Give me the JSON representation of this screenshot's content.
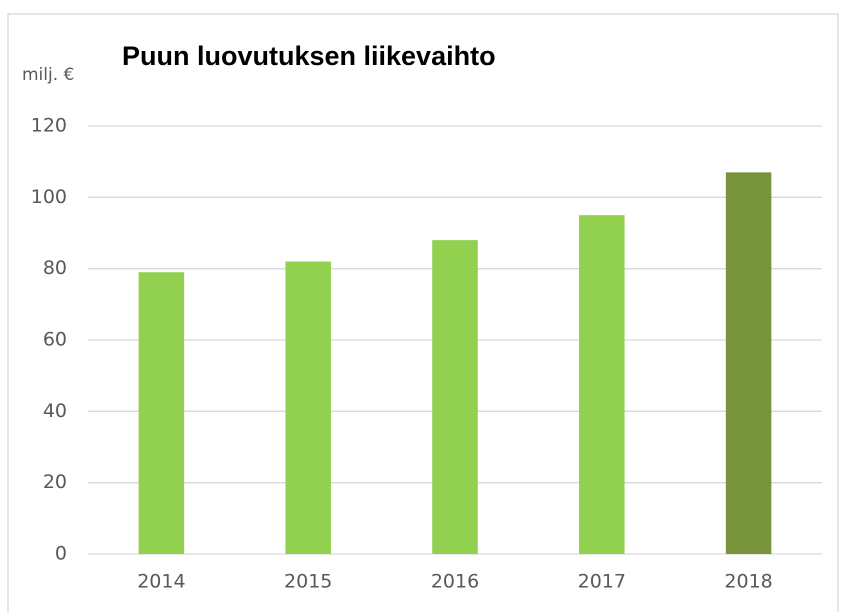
{
  "chart_data": {
    "type": "bar",
    "title": "Puun luovutuksen liikevaihto",
    "y_label": "milj. €",
    "categories": [
      "2014",
      "2015",
      "2016",
      "2017",
      "2018"
    ],
    "values": [
      79,
      82,
      88,
      95,
      107
    ],
    "colors": [
      "#92d050",
      "#92d050",
      "#92d050",
      "#92d050",
      "#77933c"
    ],
    "ylim": [
      0,
      120
    ],
    "yticks": [
      0,
      20,
      40,
      60,
      80,
      100,
      120
    ],
    "grid": true
  }
}
